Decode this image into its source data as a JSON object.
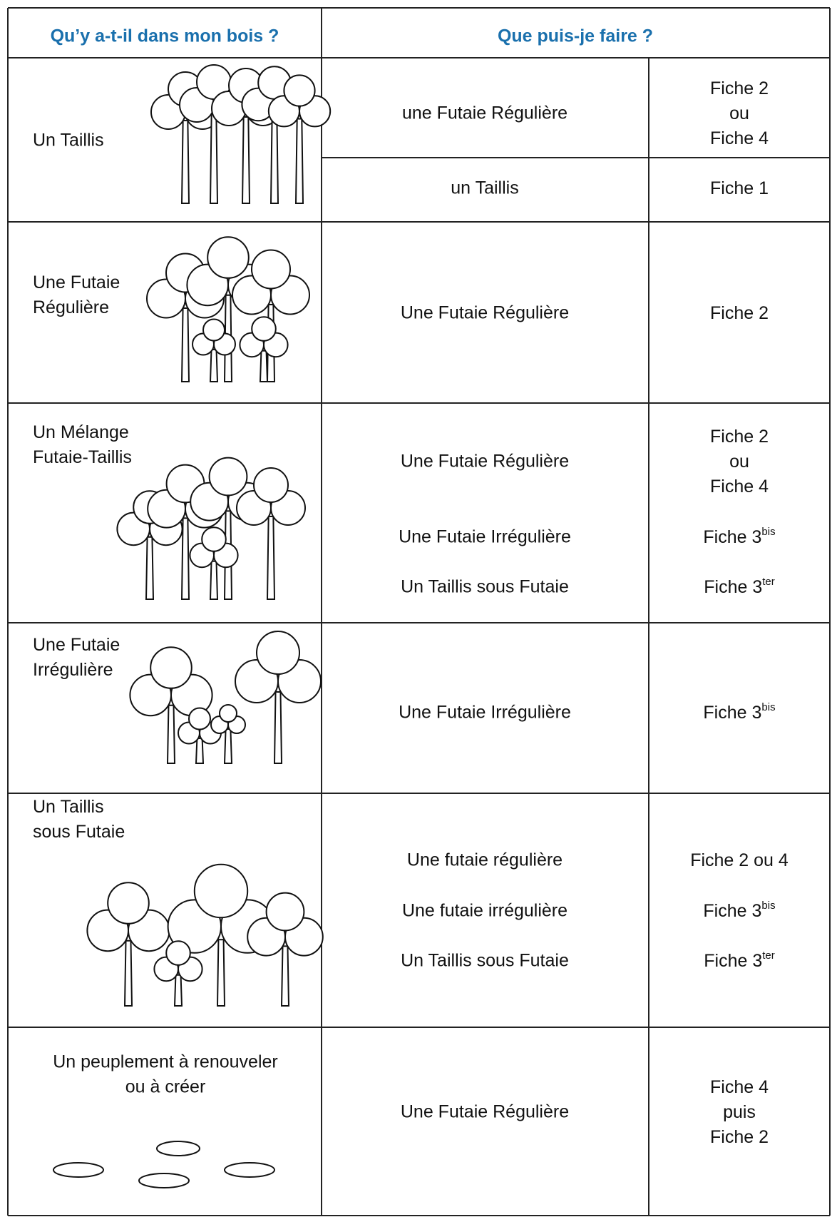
{
  "header": {
    "left": "Qu’y a-t-il dans mon bois ?",
    "right": "Que puis-je faire ?"
  },
  "rows": [
    {
      "label": [
        "Un Taillis"
      ],
      "options": [
        {
          "goal": "une Futaie Régulière",
          "fiche": [
            "Fiche 2",
            "ou",
            "Fiche 4"
          ]
        },
        {
          "goal": "un Taillis",
          "fiche": [
            "Fiche 1"
          ]
        }
      ]
    },
    {
      "label": [
        "Une Futaie",
        "Régulière"
      ],
      "options": [
        {
          "goal": "Une Futaie Régulière",
          "fiche": [
            "Fiche 2"
          ]
        }
      ]
    },
    {
      "label": [
        "Un Mélange",
        "Futaie-Taillis"
      ],
      "options": [
        {
          "goal": "Une Futaie Régulière",
          "fiche": [
            "Fiche 2",
            "ou",
            "Fiche 4"
          ]
        },
        {
          "goal": "Une Futaie Irrégulière",
          "fiche": [
            "Fiche 3"
          ],
          "sup": "bis"
        },
        {
          "goal": "Un Taillis sous Futaie",
          "fiche": [
            "Fiche 3"
          ],
          "sup": "ter"
        }
      ]
    },
    {
      "label": [
        "Une Futaie",
        "Irrégulière"
      ],
      "options": [
        {
          "goal": "Une Futaie Irrégulière",
          "fiche": [
            "Fiche 3"
          ],
          "sup": "bis"
        }
      ]
    },
    {
      "label": [
        "Un Taillis",
        "sous Futaie"
      ],
      "options": [
        {
          "goal": "Une futaie régulière",
          "fiche": [
            "Fiche 2 ou 4"
          ]
        },
        {
          "goal": "Une futaie irrégulière",
          "fiche": [
            "Fiche 3"
          ],
          "sup": "bis"
        },
        {
          "goal": "Un Taillis sous Futaie",
          "fiche": [
            "Fiche 3"
          ],
          "sup": "ter"
        }
      ]
    },
    {
      "label": [
        "Un peuplement à renouveler",
        "ou à créer"
      ],
      "options": [
        {
          "goal": "Une Futaie Régulière",
          "fiche": [
            "Fiche 4",
            "puis",
            "Fiche 2"
          ]
        }
      ]
    }
  ]
}
